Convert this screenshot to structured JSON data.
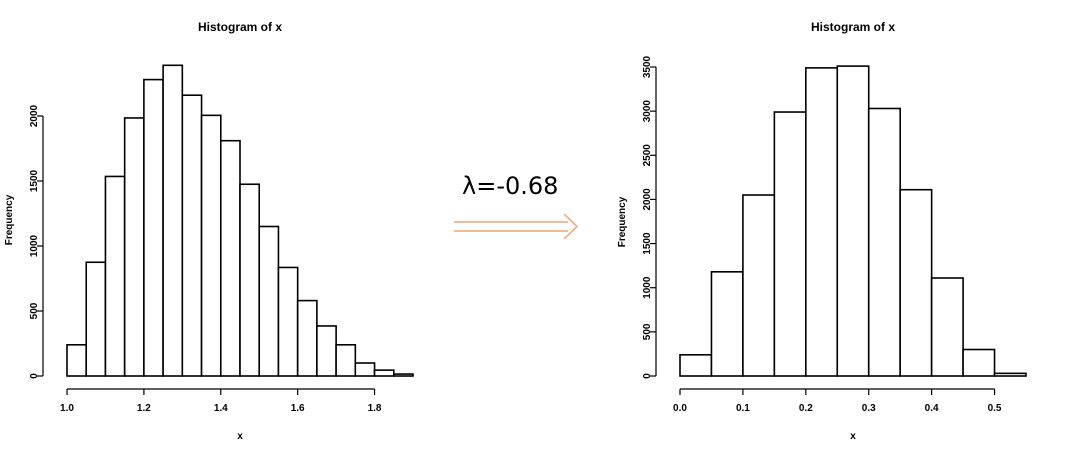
{
  "annotation": {
    "lambda_label": "λ=-0.68",
    "arrow_color": "#f4a46b"
  },
  "chart_data": [
    {
      "type": "histogram",
      "title": "Histogram of x",
      "xlabel": "x",
      "ylabel": "Frequency",
      "bin_edges": [
        1.0,
        1.05,
        1.1,
        1.15,
        1.2,
        1.25,
        1.3,
        1.35,
        1.4,
        1.45,
        1.5,
        1.55,
        1.6,
        1.65,
        1.7,
        1.75,
        1.8,
        1.85,
        1.9
      ],
      "values": [
        240,
        875,
        1535,
        1985,
        2280,
        2390,
        2160,
        2005,
        1810,
        1475,
        1150,
        835,
        580,
        385,
        240,
        100,
        45,
        15
      ],
      "xlim": [
        1.0,
        1.9
      ],
      "ylim": [
        0,
        2400
      ],
      "xticks": [
        "1.0",
        "1.2",
        "1.4",
        "1.6",
        "1.8"
      ],
      "yticks": [
        "0",
        "500",
        "1000",
        "1500",
        "2000"
      ]
    },
    {
      "type": "histogram",
      "title": "Histogram of x",
      "xlabel": "x",
      "ylabel": "Frequency",
      "bin_edges": [
        0.0,
        0.05,
        0.1,
        0.15,
        0.2,
        0.25,
        0.3,
        0.35,
        0.4,
        0.45,
        0.5,
        0.55
      ],
      "values": [
        240,
        1180,
        2050,
        2990,
        3490,
        3510,
        3030,
        2110,
        1110,
        300,
        30
      ],
      "xlim": [
        0.0,
        0.55
      ],
      "ylim": [
        0,
        3500
      ],
      "xticks": [
        "0.0",
        "0.1",
        "0.2",
        "0.3",
        "0.4",
        "0.5"
      ],
      "yticks": [
        "0",
        "500",
        "1000",
        "1500",
        "2000",
        "2500",
        "3000",
        "3500"
      ]
    }
  ]
}
